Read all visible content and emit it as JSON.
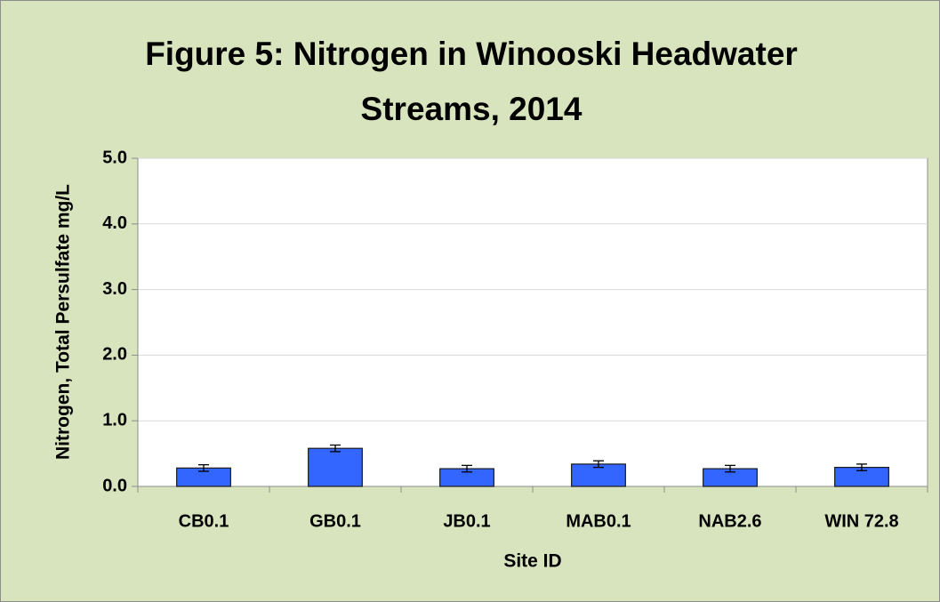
{
  "chart_data": {
    "type": "bar",
    "title": "Figure 5: Nitrogen in Winooski Headwater Streams, 2014",
    "x_label": "Site ID",
    "y_label": "Nitrogen, Total Persulfate mg/L",
    "categories": [
      "CB0.1",
      "GB0.1",
      "JB0.1",
      "MAB0.1",
      "NAB2.6",
      "WIN 72.8"
    ],
    "values": [
      0.28,
      0.58,
      0.27,
      0.34,
      0.27,
      0.29
    ],
    "errors": [
      0.05,
      0.05,
      0.05,
      0.05,
      0.05,
      0.05
    ],
    "color": "#3366ff",
    "ylim": [
      0,
      5
    ],
    "yticks": [
      {
        "value": 0,
        "label": "0.0"
      },
      {
        "value": 1,
        "label": "1.0"
      },
      {
        "value": 2,
        "label": "2.0"
      },
      {
        "value": 3,
        "label": "3.0"
      },
      {
        "value": 4,
        "label": "4.0"
      },
      {
        "value": 5,
        "label": "5.0"
      }
    ],
    "grid": true
  }
}
